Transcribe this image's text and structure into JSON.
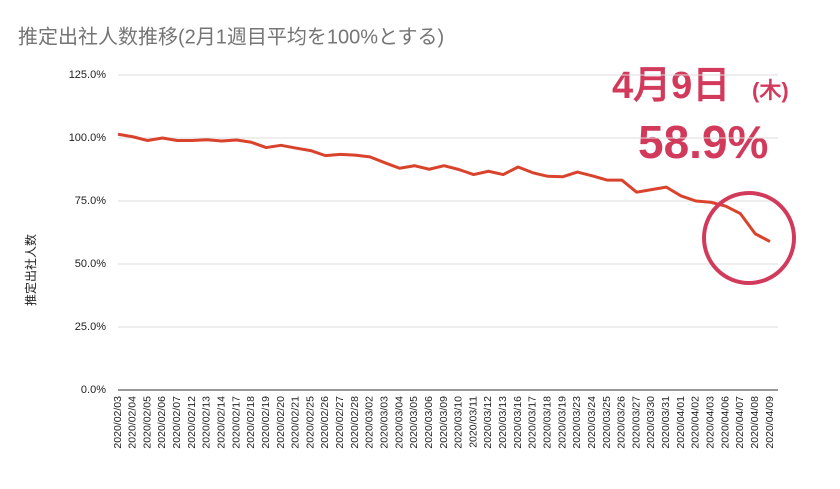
{
  "chart_data": {
    "type": "line",
    "title": "推定出社人数推移(2月1週目平均を100%とする)",
    "y_label": "推定出社人数",
    "annotation": {
      "date": "4月9日",
      "weekday": "(木)",
      "value": "58.9%"
    },
    "categories": [
      "2020/02/03",
      "2020/02/04",
      "2020/02/05",
      "2020/02/06",
      "2020/02/07",
      "2020/02/12",
      "2020/02/13",
      "2020/02/14",
      "2020/02/17",
      "2020/02/18",
      "2020/02/19",
      "2020/02/20",
      "2020/02/21",
      "2020/02/25",
      "2020/02/26",
      "2020/02/27",
      "2020/02/28",
      "2020/03/02",
      "2020/03/03",
      "2020/03/04",
      "2020/03/05",
      "2020/03/06",
      "2020/03/09",
      "2020/03/10",
      "2020/03/11",
      "2020/03/12",
      "2020/03/13",
      "2020/03/16",
      "2020/03/17",
      "2020/03/18",
      "2020/03/19",
      "2020/03/23",
      "2020/03/24",
      "2020/03/25",
      "2020/03/26",
      "2020/03/27",
      "2020/03/30",
      "2020/03/31",
      "2020/04/01",
      "2020/04/02",
      "2020/04/03",
      "2020/04/06",
      "2020/04/07",
      "2020/04/08",
      "2020/04/09"
    ],
    "values": [
      101.5,
      100.5,
      99,
      100,
      99,
      99,
      99.3,
      98.8,
      99.2,
      98.3,
      96.2,
      97.1,
      96,
      95,
      93,
      93.5,
      93.2,
      92.5,
      90.2,
      88,
      89,
      87.6,
      89,
      87.5,
      85.5,
      86.8,
      85.5,
      88.5,
      86.2,
      84.8,
      84.6,
      86.5,
      85,
      83.3,
      83.3,
      78.5,
      79.5,
      80.5,
      77,
      75,
      74.5,
      73,
      70,
      62,
      58.9
    ],
    "color": "#d9432c",
    "ylim": [
      0,
      125
    ],
    "yticks": [
      {
        "value": 0,
        "label": "0.0%"
      },
      {
        "value": 25,
        "label": "25.0%"
      },
      {
        "value": 50,
        "label": "50.0%"
      },
      {
        "value": 75,
        "label": "75.0%"
      },
      {
        "value": 100,
        "label": "100.0%"
      },
      {
        "value": 125,
        "label": "125.0%"
      }
    ],
    "grid": true
  }
}
